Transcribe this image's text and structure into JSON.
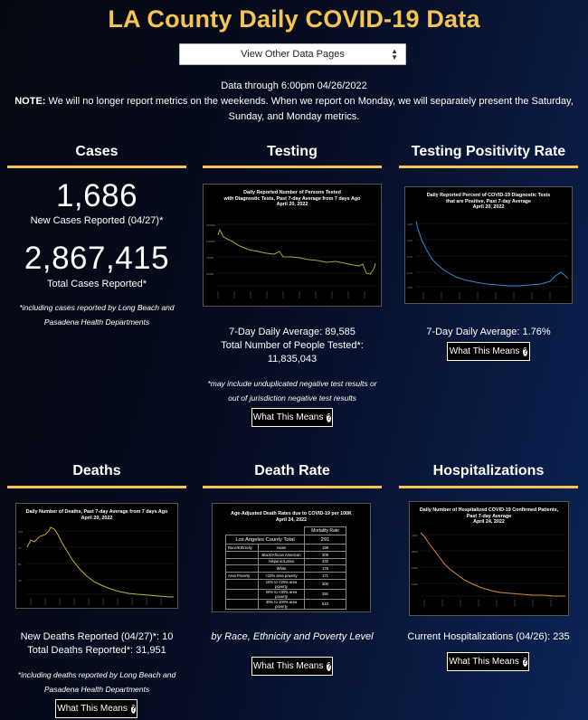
{
  "header": {
    "title": "LA County Daily COVID-19 Data",
    "select_value": "View Other Data Pages",
    "data_through": "Data through 6:00pm 04/26/2022",
    "note_label": "NOTE:",
    "note_text": " We will no longer report metrics on the weekends. When we report on Monday, we will separately present the Saturday, Sunday, and Monday metrics."
  },
  "cases": {
    "title": "Cases",
    "new_number": "1,686",
    "new_label": "New Cases Reported (04/27)*",
    "total_number": "2,867,415",
    "total_label": "Total Cases Reported*",
    "footnote": "*including cases reported by Long Beach and Pasadena Health Departments"
  },
  "testing": {
    "title": "Testing",
    "chart_title": "Daily Reported Number of Persons Tested\nwith Diagnostic Tests, Past 7-day Average from 7 days Ago\nApril 20, 2022",
    "avg_line": "7-Day Daily Average: 89,585",
    "total_line": "Total Number of People Tested*:",
    "total_value": "11,835,043",
    "footnote": "*may include unduplicated negative test results or out of jurisdiction negative test results",
    "button": "What This Means"
  },
  "positivity": {
    "title": "Testing Positivity Rate",
    "chart_title": "Daily Reported Percent of COVID-19 Diagnostic Tests\nthat are Positive, Past 7-day Average\nApril 20, 2022",
    "avg_line": "7-Day Daily Average: 1.76%",
    "button": "What This Means"
  },
  "deaths": {
    "title": "Deaths",
    "chart_title": "Daily Number of Deaths, Past 7-day Average from 7 days Ago\nApril 20, 2022",
    "new_line": "New Deaths Reported (04/27)*: 10",
    "total_line": "Total Deaths Reported*: 31,951",
    "footnote": "*including deaths reported by Long Beach and Pasadena Health Departments",
    "button": "What This Means"
  },
  "death_rate": {
    "title": "Death Rate",
    "table_caption": "Age-Adjusted Death Rates due to COVID-19 per 100K\nApril 24, 2022",
    "table_header": "Mortality Rate",
    "total_label": "Los Angeles County Total",
    "total_value": "291",
    "rows": [
      {
        "cat": "Race/Ethnicity",
        "sub": "Asian",
        "val": "198"
      },
      {
        "cat": "",
        "sub": "Black/African American",
        "val": "309"
      },
      {
        "cat": "",
        "sub": "Hispanic/Latino",
        "val": "432"
      },
      {
        "cat": "",
        "sub": "White",
        "val": "176"
      },
      {
        "cat": "Area Poverty",
        "sub": "<10% area poverty",
        "val": "171"
      },
      {
        "cat": "",
        "sub": "10% to <20% area poverty",
        "val": "300"
      },
      {
        "cat": "",
        "sub": "20% to <30% area poverty",
        "val": "391"
      },
      {
        "cat": "",
        "sub": "30% to 100% area poverty",
        "val": "510"
      }
    ],
    "caption": "by Race, Ethnicity and Poverty Level",
    "button": "What This Means"
  },
  "hospitalizations": {
    "title": "Hospitalizations",
    "chart_title": "Daily Number of Hospitalized COVID-19 Confirmed Patients,\nPast 7-day Average\nApril 24, 2022",
    "current_line": "Current Hospitalizations (04/26): 235",
    "button": "What This Means"
  },
  "colors": {
    "gold": "#f5c451",
    "testing_line": "#a9a93a",
    "positivity_line": "#2d8fd6",
    "deaths_line": "#c9b13a",
    "hosp_line": "#d88a2a"
  }
}
